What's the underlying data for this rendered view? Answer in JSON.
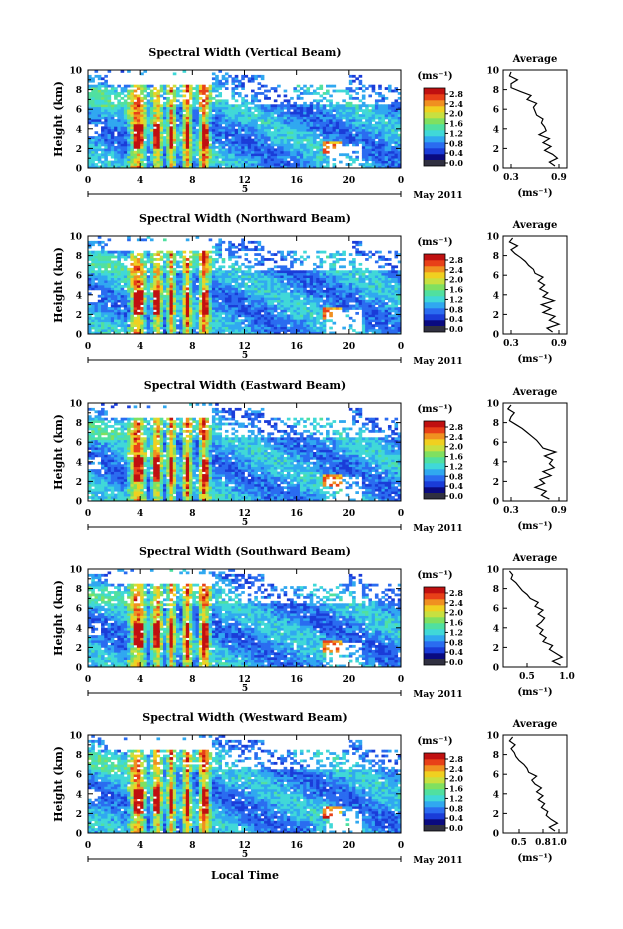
{
  "figure": {
    "date_label": "May 2011",
    "xlabel": "Local Time",
    "colorbar_unit": "(ms⁻¹)",
    "avg_title": "Average",
    "avg_unit": "(ms⁻¹)",
    "colors": {
      "jet": [
        "#0a0a80",
        "#1a3cd8",
        "#2a6cf0",
        "#30a8f0",
        "#40d8d8",
        "#50e0a0",
        "#80e060",
        "#c8e040",
        "#f0d020",
        "#f09020",
        "#e84018",
        "#c01010"
      ],
      "colorbar_bottom": "#303040"
    }
  },
  "chart_data": [
    {
      "type": "heatmap",
      "title": "Spectral Width (Vertical Beam)",
      "ylabel": "Height (km)",
      "xlim": [
        0,
        24
      ],
      "ylim": [
        0,
        10
      ],
      "xticks": [
        "0",
        "4",
        "8",
        "12",
        "16",
        "20",
        "0"
      ],
      "yticks": [
        "0",
        "2",
        "4",
        "6",
        "8",
        "10"
      ],
      "day_marker": "5",
      "colorbar_ticks": [
        "0.0",
        "0.4",
        "0.8",
        "1.2",
        "1.6",
        "2.0",
        "2.4",
        "2.8"
      ],
      "average": {
        "xticks": [
          "0.3",
          "0.9"
        ],
        "xlim": [
          0.2,
          1.0
        ],
        "height": [
          0.2,
          0.6,
          1.0,
          1.4,
          1.8,
          2.2,
          2.6,
          3.0,
          3.4,
          3.8,
          4.2,
          4.6,
          5.0,
          5.4,
          5.8,
          6.2,
          6.6,
          7.0,
          7.4,
          7.8,
          8.2,
          8.6,
          9.0,
          9.4,
          9.8
        ],
        "width": [
          0.85,
          0.78,
          0.88,
          0.82,
          0.72,
          0.8,
          0.7,
          0.78,
          0.65,
          0.74,
          0.72,
          0.68,
          0.7,
          0.62,
          0.6,
          0.58,
          0.62,
          0.5,
          0.55,
          0.42,
          0.3,
          0.3,
          0.38,
          0.28,
          0.3
        ]
      }
    },
    {
      "type": "heatmap",
      "title": "Spectral Width (Northward Beam)",
      "ylabel": "Height (km)",
      "xlim": [
        0,
        24
      ],
      "ylim": [
        0,
        10
      ],
      "xticks": [
        "0",
        "4",
        "8",
        "12",
        "16",
        "20",
        "0"
      ],
      "yticks": [
        "0",
        "2",
        "4",
        "6",
        "8",
        "10"
      ],
      "day_marker": "5",
      "colorbar_ticks": [
        "0.0",
        "0.4",
        "0.8",
        "1.2",
        "1.6",
        "2.0",
        "2.4",
        "2.8"
      ],
      "average": {
        "xticks": [
          "0.3",
          "0.9"
        ],
        "xlim": [
          0.2,
          1.0
        ],
        "height": [
          0.2,
          0.6,
          1.0,
          1.4,
          1.8,
          2.2,
          2.6,
          3.0,
          3.4,
          3.8,
          4.2,
          4.6,
          5.0,
          5.4,
          5.8,
          6.2,
          6.6,
          7.0,
          7.4,
          7.8,
          8.2,
          8.6,
          9.0,
          9.4,
          9.8
        ],
        "width": [
          0.82,
          0.75,
          0.9,
          0.78,
          0.85,
          0.7,
          0.8,
          0.68,
          0.84,
          0.7,
          0.76,
          0.66,
          0.72,
          0.64,
          0.7,
          0.6,
          0.58,
          0.52,
          0.48,
          0.42,
          0.35,
          0.3,
          0.38,
          0.28,
          0.32
        ]
      }
    },
    {
      "type": "heatmap",
      "title": "Spectral Width (Eastward Beam)",
      "ylabel": "Height (km)",
      "xlim": [
        0,
        24
      ],
      "ylim": [
        0,
        10
      ],
      "xticks": [
        "0",
        "4",
        "8",
        "12",
        "16",
        "20",
        "0"
      ],
      "yticks": [
        "0",
        "2",
        "4",
        "6",
        "8",
        "10"
      ],
      "day_marker": "5",
      "colorbar_ticks": [
        "0.0",
        "0.4",
        "0.8",
        "1.2",
        "1.6",
        "2.0",
        "2.4",
        "2.8"
      ],
      "average": {
        "xticks": [
          "0.3",
          "0.9"
        ],
        "xlim": [
          0.2,
          1.0
        ],
        "height": [
          0.2,
          0.6,
          1.0,
          1.4,
          1.8,
          2.2,
          2.6,
          3.0,
          3.4,
          3.8,
          4.2,
          4.6,
          5.0,
          5.4,
          5.8,
          6.2,
          6.6,
          7.0,
          7.4,
          7.8,
          8.2,
          8.6,
          9.0,
          9.4,
          9.8
        ],
        "width": [
          0.78,
          0.68,
          0.74,
          0.6,
          0.72,
          0.66,
          0.8,
          0.7,
          0.84,
          0.78,
          0.82,
          0.72,
          0.86,
          0.7,
          0.66,
          0.62,
          0.56,
          0.5,
          0.44,
          0.36,
          0.28,
          0.3,
          0.34,
          0.26,
          0.3
        ]
      }
    },
    {
      "type": "heatmap",
      "title": "Spectral Width (Southward Beam)",
      "ylabel": "Height (km)",
      "xlim": [
        0,
        24
      ],
      "ylim": [
        0,
        10
      ],
      "xticks": [
        "0",
        "4",
        "8",
        "12",
        "16",
        "20",
        "0"
      ],
      "yticks": [
        "0",
        "2",
        "4",
        "6",
        "8",
        "10"
      ],
      "day_marker": "5",
      "colorbar_ticks": [
        "0.0",
        "0.4",
        "0.8",
        "1.2",
        "1.6",
        "2.0",
        "2.4",
        "2.8"
      ],
      "average": {
        "xticks": [
          "0.5",
          "1.0"
        ],
        "xlim": [
          0.2,
          1.0
        ],
        "height": [
          0.2,
          0.6,
          1.0,
          1.4,
          1.8,
          2.2,
          2.6,
          3.0,
          3.4,
          3.8,
          4.2,
          4.6,
          5.0,
          5.4,
          5.8,
          6.2,
          6.6,
          7.0,
          7.4,
          7.8,
          8.2,
          8.6,
          9.0,
          9.4,
          9.8
        ],
        "width": [
          0.92,
          0.82,
          0.94,
          0.86,
          0.78,
          0.82,
          0.7,
          0.74,
          0.66,
          0.7,
          0.62,
          0.68,
          0.72,
          0.64,
          0.7,
          0.6,
          0.64,
          0.54,
          0.5,
          0.44,
          0.4,
          0.36,
          0.3,
          0.32,
          0.28
        ]
      }
    },
    {
      "type": "heatmap",
      "title": "Spectral Width (Westward Beam)",
      "ylabel": "Height (km)",
      "xlim": [
        0,
        24
      ],
      "ylim": [
        0,
        10
      ],
      "xticks": [
        "0",
        "4",
        "8",
        "12",
        "16",
        "20",
        "0"
      ],
      "yticks": [
        "0",
        "2",
        "4",
        "6",
        "8",
        "10"
      ],
      "day_marker": "5",
      "colorbar_ticks": [
        "0.0",
        "0.4",
        "0.8",
        "1.2",
        "1.6",
        "2.0",
        "2.4",
        "2.8"
      ],
      "average": {
        "xticks": [
          "0.5",
          "0.8",
          "1.0"
        ],
        "xlim": [
          0.3,
          1.1
        ],
        "height": [
          0.2,
          0.6,
          1.0,
          1.4,
          1.8,
          2.2,
          2.6,
          3.0,
          3.4,
          3.8,
          4.2,
          4.6,
          5.0,
          5.4,
          5.8,
          6.2,
          6.6,
          7.0,
          7.4,
          7.8,
          8.2,
          8.6,
          9.0,
          9.4,
          9.8
        ],
        "width": [
          0.95,
          0.88,
          0.98,
          0.9,
          0.84,
          0.86,
          0.78,
          0.82,
          0.74,
          0.8,
          0.72,
          0.78,
          0.7,
          0.66,
          0.72,
          0.62,
          0.6,
          0.56,
          0.5,
          0.46,
          0.44,
          0.4,
          0.45,
          0.38,
          0.42
        ]
      }
    }
  ]
}
